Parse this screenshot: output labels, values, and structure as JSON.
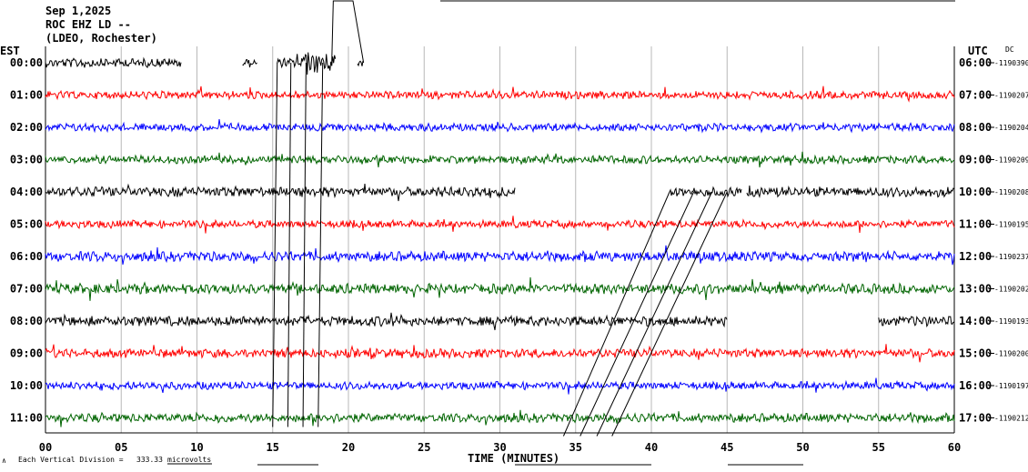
{
  "header": {
    "date": "Sep 1,2025",
    "station": "ROC EHZ LD --",
    "network": "(LDEO, Rochester)"
  },
  "left_axis_label": "EST",
  "right_axis_label": "UTC",
  "dc_label": "DC",
  "footer": {
    "scale_prefix": "Each Vertical Division = ",
    "scale_value": "333.33",
    "scale_unit": "microvolts",
    "xlabel": "TIME (MINUTES)"
  },
  "chart_data": {
    "type": "line",
    "title": "",
    "xlabel": "TIME (MINUTES)",
    "ylabel": "",
    "xlim": [
      0,
      60
    ],
    "x_ticks": [
      "00",
      "05",
      "10",
      "15",
      "20",
      "25",
      "30",
      "35",
      "40",
      "45",
      "50",
      "55",
      "60"
    ],
    "grid": true,
    "rows": [
      {
        "est": "00:00",
        "utc": "06:00",
        "dc": "-1190390",
        "color": "#000000",
        "segments": [
          [
            0,
            9
          ],
          [
            13,
            14
          ],
          [
            15.3,
            19.2
          ],
          [
            20.6,
            21
          ]
        ],
        "amp": 4,
        "event": [
          17,
          19.2
        ]
      },
      {
        "est": "01:00",
        "utc": "07:00",
        "dc": "-1190207",
        "color": "#ff0000",
        "segments": [
          [
            0,
            60
          ]
        ],
        "amp": 3.5
      },
      {
        "est": "02:00",
        "utc": "08:00",
        "dc": "-1190204",
        "color": "#0000ff",
        "segments": [
          [
            0,
            60
          ]
        ],
        "amp": 3.5
      },
      {
        "est": "03:00",
        "utc": "09:00",
        "dc": "-1190209",
        "color": "#006400",
        "segments": [
          [
            0,
            60
          ]
        ],
        "amp": 3.5
      },
      {
        "est": "04:00",
        "utc": "10:00",
        "dc": "-1190208",
        "color": "#000000",
        "segments": [
          [
            0,
            31
          ],
          [
            41.2,
            46
          ],
          [
            46.3,
            60
          ]
        ],
        "amp": 4.5
      },
      {
        "est": "05:00",
        "utc": "11:00",
        "dc": "-1190195",
        "color": "#ff0000",
        "segments": [
          [
            0,
            60
          ]
        ],
        "amp": 3.5
      },
      {
        "est": "06:00",
        "utc": "12:00",
        "dc": "-1190237",
        "color": "#0000ff",
        "segments": [
          [
            0,
            60
          ]
        ],
        "amp": 4.5
      },
      {
        "est": "07:00",
        "utc": "13:00",
        "dc": "-1190202",
        "color": "#006400",
        "segments": [
          [
            0,
            60
          ]
        ],
        "amp": 4.5
      },
      {
        "est": "08:00",
        "utc": "14:00",
        "dc": "-1190193",
        "color": "#000000",
        "segments": [
          [
            0,
            45
          ],
          [
            55,
            60
          ]
        ],
        "amp": 4.5
      },
      {
        "est": "09:00",
        "utc": "15:00",
        "dc": "-1190200",
        "color": "#ff0000",
        "segments": [
          [
            0,
            60
          ]
        ],
        "amp": 4
      },
      {
        "est": "10:00",
        "utc": "16:00",
        "dc": "-1190197",
        "color": "#0000ff",
        "segments": [
          [
            0,
            60
          ]
        ],
        "amp": 3.5
      },
      {
        "est": "11:00",
        "utc": "17:00",
        "dc": "-1190212",
        "color": "#006400",
        "segments": [
          [
            0,
            60
          ]
        ],
        "amp": 4
      }
    ]
  }
}
